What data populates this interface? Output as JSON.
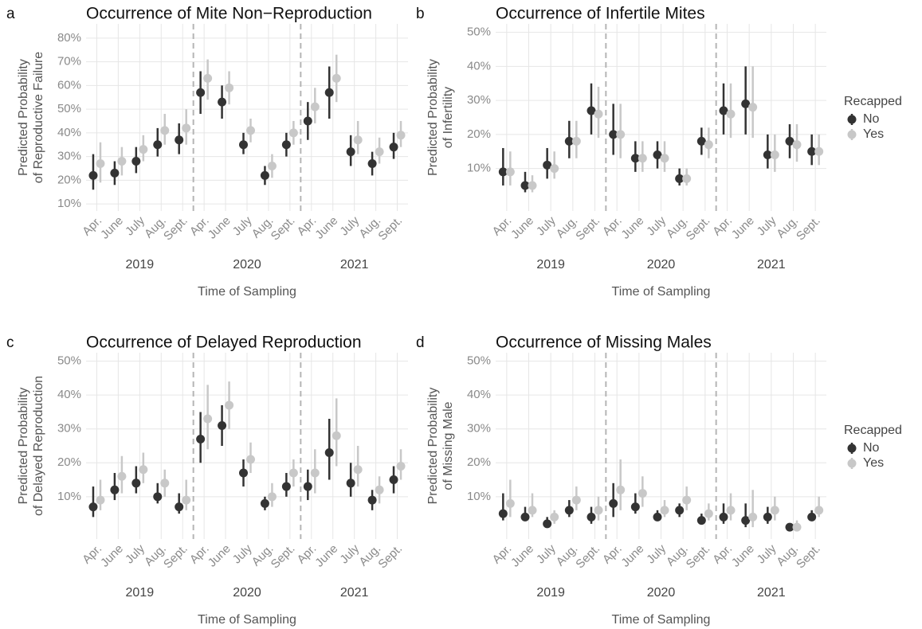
{
  "chart_data": [
    {
      "type": "pointrange",
      "panel": "a",
      "title": "Occurrence of Mite Non−Reproduction",
      "ylabel": [
        "Predicted Probability",
        "of Reproductive Failure"
      ],
      "xlabel": "Time of Sampling",
      "groups": [
        {
          "label": "2019",
          "categories": [
            "Apr.",
            "June",
            "July",
            "Aug.",
            "Sept."
          ]
        },
        {
          "label": "2020",
          "categories": [
            "Apr.",
            "June",
            "July",
            "Aug.",
            "Sept."
          ]
        },
        {
          "label": "2021",
          "categories": [
            "Apr.",
            "June",
            "July",
            "Aug.",
            "Sept."
          ]
        }
      ],
      "ylim": [
        7,
        86
      ],
      "yticks": [
        {
          "value": 10,
          "label": "10%"
        },
        {
          "value": 20,
          "label": "20%"
        },
        {
          "value": 30,
          "label": "30%"
        },
        {
          "value": 40,
          "label": "40%"
        },
        {
          "value": 50,
          "label": "50%"
        },
        {
          "value": 60,
          "label": "60%"
        },
        {
          "value": 70,
          "label": "70%"
        },
        {
          "value": 80,
          "label": "80%"
        }
      ],
      "grid": true,
      "series": [
        {
          "color": "#333333",
          "values": [
            22,
            23,
            28,
            35,
            37,
            57,
            53,
            35,
            22,
            35,
            45,
            57,
            32,
            27,
            34
          ],
          "lower": [
            16,
            18,
            23,
            30,
            31,
            48,
            46,
            31,
            18,
            30,
            37,
            46,
            26,
            22,
            29
          ],
          "upper": [
            31,
            28,
            34,
            42,
            44,
            66,
            60,
            40,
            26,
            40,
            53,
            68,
            39,
            32,
            40
          ]
        },
        {
          "color": "#c8c8c8",
          "values": [
            27,
            28,
            33,
            41,
            42,
            63,
            59,
            41,
            26,
            40,
            51,
            63,
            37,
            32,
            39
          ],
          "lower": [
            19,
            22,
            28,
            35,
            35,
            54,
            52,
            36,
            21,
            35,
            44,
            53,
            31,
            27,
            34
          ],
          "upper": [
            36,
            34,
            39,
            48,
            50,
            71,
            66,
            46,
            31,
            45,
            59,
            73,
            45,
            38,
            45
          ]
        }
      ]
    },
    {
      "type": "pointrange",
      "panel": "b",
      "title": "Occurrence of Infertile Mites",
      "ylabel": [
        "Predicted Probability",
        "of Infertility"
      ],
      "xlabel": "Time of Sampling",
      "groups": [
        {
          "label": "2019",
          "categories": [
            "Apr.",
            "June",
            "July",
            "Aug.",
            "Sept."
          ]
        },
        {
          "label": "2020",
          "categories": [
            "Apr.",
            "June",
            "July",
            "Aug.",
            "Sept."
          ]
        },
        {
          "label": "2021",
          "categories": [
            "Apr.",
            "June",
            "July",
            "Aug.",
            "Sept."
          ]
        }
      ],
      "ylim": [
        -2.5,
        52.5
      ],
      "yticks": [
        {
          "value": 10,
          "label": "10%"
        },
        {
          "value": 20,
          "label": "20%"
        },
        {
          "value": 30,
          "label": "30%"
        },
        {
          "value": 40,
          "label": "40%"
        },
        {
          "value": 50,
          "label": "50%"
        }
      ],
      "grid": true,
      "legend_title": "Recapped",
      "series": [
        {
          "name": "No",
          "color": "#333333",
          "values": [
            9,
            5,
            11,
            18,
            27,
            20,
            13,
            14,
            7,
            18,
            27,
            29,
            14,
            18,
            15
          ],
          "lower": [
            5,
            3,
            7,
            13,
            20,
            14,
            9,
            10,
            5,
            14,
            20,
            20,
            10,
            13,
            11
          ],
          "upper": [
            16,
            9,
            16,
            24,
            35,
            29,
            18,
            18,
            10,
            22,
            35,
            40,
            20,
            23,
            20
          ]
        },
        {
          "name": "Yes",
          "color": "#c8c8c8",
          "values": [
            9,
            5,
            10,
            18,
            26,
            20,
            13,
            13,
            7,
            17,
            26,
            28,
            14,
            17,
            15
          ],
          "lower": [
            5,
            3,
            7,
            13,
            19,
            13,
            9,
            9,
            5,
            13,
            19,
            19,
            9,
            12,
            11
          ],
          "upper": [
            15,
            8,
            15,
            24,
            34,
            29,
            18,
            18,
            10,
            22,
            35,
            40,
            20,
            23,
            20
          ]
        }
      ]
    },
    {
      "type": "pointrange",
      "panel": "c",
      "title": "Occurrence of Delayed Reproduction",
      "ylabel": [
        "Predicted Probability",
        "of Delayed Reproduction"
      ],
      "xlabel": "Time of Sampling",
      "groups": [
        {
          "label": "2019",
          "categories": [
            "Apr.",
            "June",
            "July",
            "Aug.",
            "Sept."
          ]
        },
        {
          "label": "2020",
          "categories": [
            "Apr.",
            "June",
            "July",
            "Aug.",
            "Sept."
          ]
        },
        {
          "label": "2021",
          "categories": [
            "Apr.",
            "June",
            "July",
            "Aug.",
            "Sept."
          ]
        }
      ],
      "ylim": [
        -2.5,
        52.5
      ],
      "yticks": [
        {
          "value": 10,
          "label": "10%"
        },
        {
          "value": 20,
          "label": "20%"
        },
        {
          "value": 30,
          "label": "30%"
        },
        {
          "value": 40,
          "label": "40%"
        },
        {
          "value": 50,
          "label": "50%"
        }
      ],
      "grid": true,
      "series": [
        {
          "color": "#333333",
          "values": [
            7,
            12,
            14,
            10,
            7,
            27,
            31,
            17,
            8,
            13,
            13,
            23,
            14,
            9,
            15
          ],
          "lower": [
            4,
            9,
            11,
            8,
            5,
            20,
            25,
            13,
            6,
            10,
            9,
            15,
            10,
            6,
            11
          ],
          "upper": [
            13,
            17,
            19,
            14,
            11,
            35,
            37,
            21,
            10,
            17,
            18,
            33,
            20,
            12,
            19
          ]
        },
        {
          "color": "#c8c8c8",
          "values": [
            9,
            16,
            18,
            14,
            9,
            33,
            37,
            21,
            10,
            17,
            17,
            28,
            18,
            12,
            19
          ],
          "lower": [
            6,
            11,
            14,
            10,
            6,
            24,
            30,
            17,
            7,
            13,
            11,
            19,
            13,
            8,
            15
          ],
          "upper": [
            15,
            22,
            23,
            18,
            15,
            43,
            44,
            26,
            14,
            21,
            24,
            39,
            25,
            16,
            24
          ]
        }
      ]
    },
    {
      "type": "pointrange",
      "panel": "d",
      "title": "Occurrence of Missing Males",
      "ylabel": [
        "Predicted Probability",
        "of Missing Male"
      ],
      "xlabel": "Time of Sampling",
      "groups": [
        {
          "label": "2019",
          "categories": [
            "Apr.",
            "June",
            "July",
            "Aug.",
            "Sept."
          ]
        },
        {
          "label": "2020",
          "categories": [
            "Apr.",
            "June",
            "July",
            "Aug.",
            "Sept."
          ]
        },
        {
          "label": "2021",
          "categories": [
            "Apr.",
            "June",
            "July",
            "Aug.",
            "Sept."
          ]
        }
      ],
      "ylim": [
        -2.5,
        52.5
      ],
      "yticks": [
        {
          "value": 10,
          "label": "10%"
        },
        {
          "value": 20,
          "label": "20%"
        },
        {
          "value": 30,
          "label": "30%"
        },
        {
          "value": 40,
          "label": "40%"
        },
        {
          "value": 50,
          "label": "50%"
        }
      ],
      "grid": true,
      "legend_title": "Recapped",
      "series": [
        {
          "name": "No",
          "color": "#333333",
          "values": [
            5,
            4,
            2,
            6,
            4,
            8,
            7,
            4,
            6,
            3,
            4,
            3,
            4,
            1,
            4
          ],
          "lower": [
            3,
            3,
            2,
            4,
            2,
            4,
            5,
            3,
            4,
            3,
            2,
            1,
            2,
            0,
            3
          ],
          "upper": [
            11,
            7,
            4,
            9,
            7,
            14,
            11,
            6,
            8,
            5,
            8,
            8,
            7,
            2,
            6
          ]
        },
        {
          "name": "Yes",
          "color": "#c8c8c8",
          "values": [
            8,
            6,
            4,
            9,
            6,
            12,
            11,
            6,
            9,
            5,
            6,
            4,
            6,
            1,
            6
          ],
          "lower": [
            4,
            4,
            2,
            6,
            3,
            6,
            7,
            4,
            6,
            3,
            3,
            1,
            3,
            0,
            4
          ],
          "upper": [
            15,
            11,
            6,
            13,
            10,
            21,
            16,
            9,
            13,
            8,
            11,
            12,
            10,
            3,
            10
          ]
        }
      ]
    }
  ]
}
